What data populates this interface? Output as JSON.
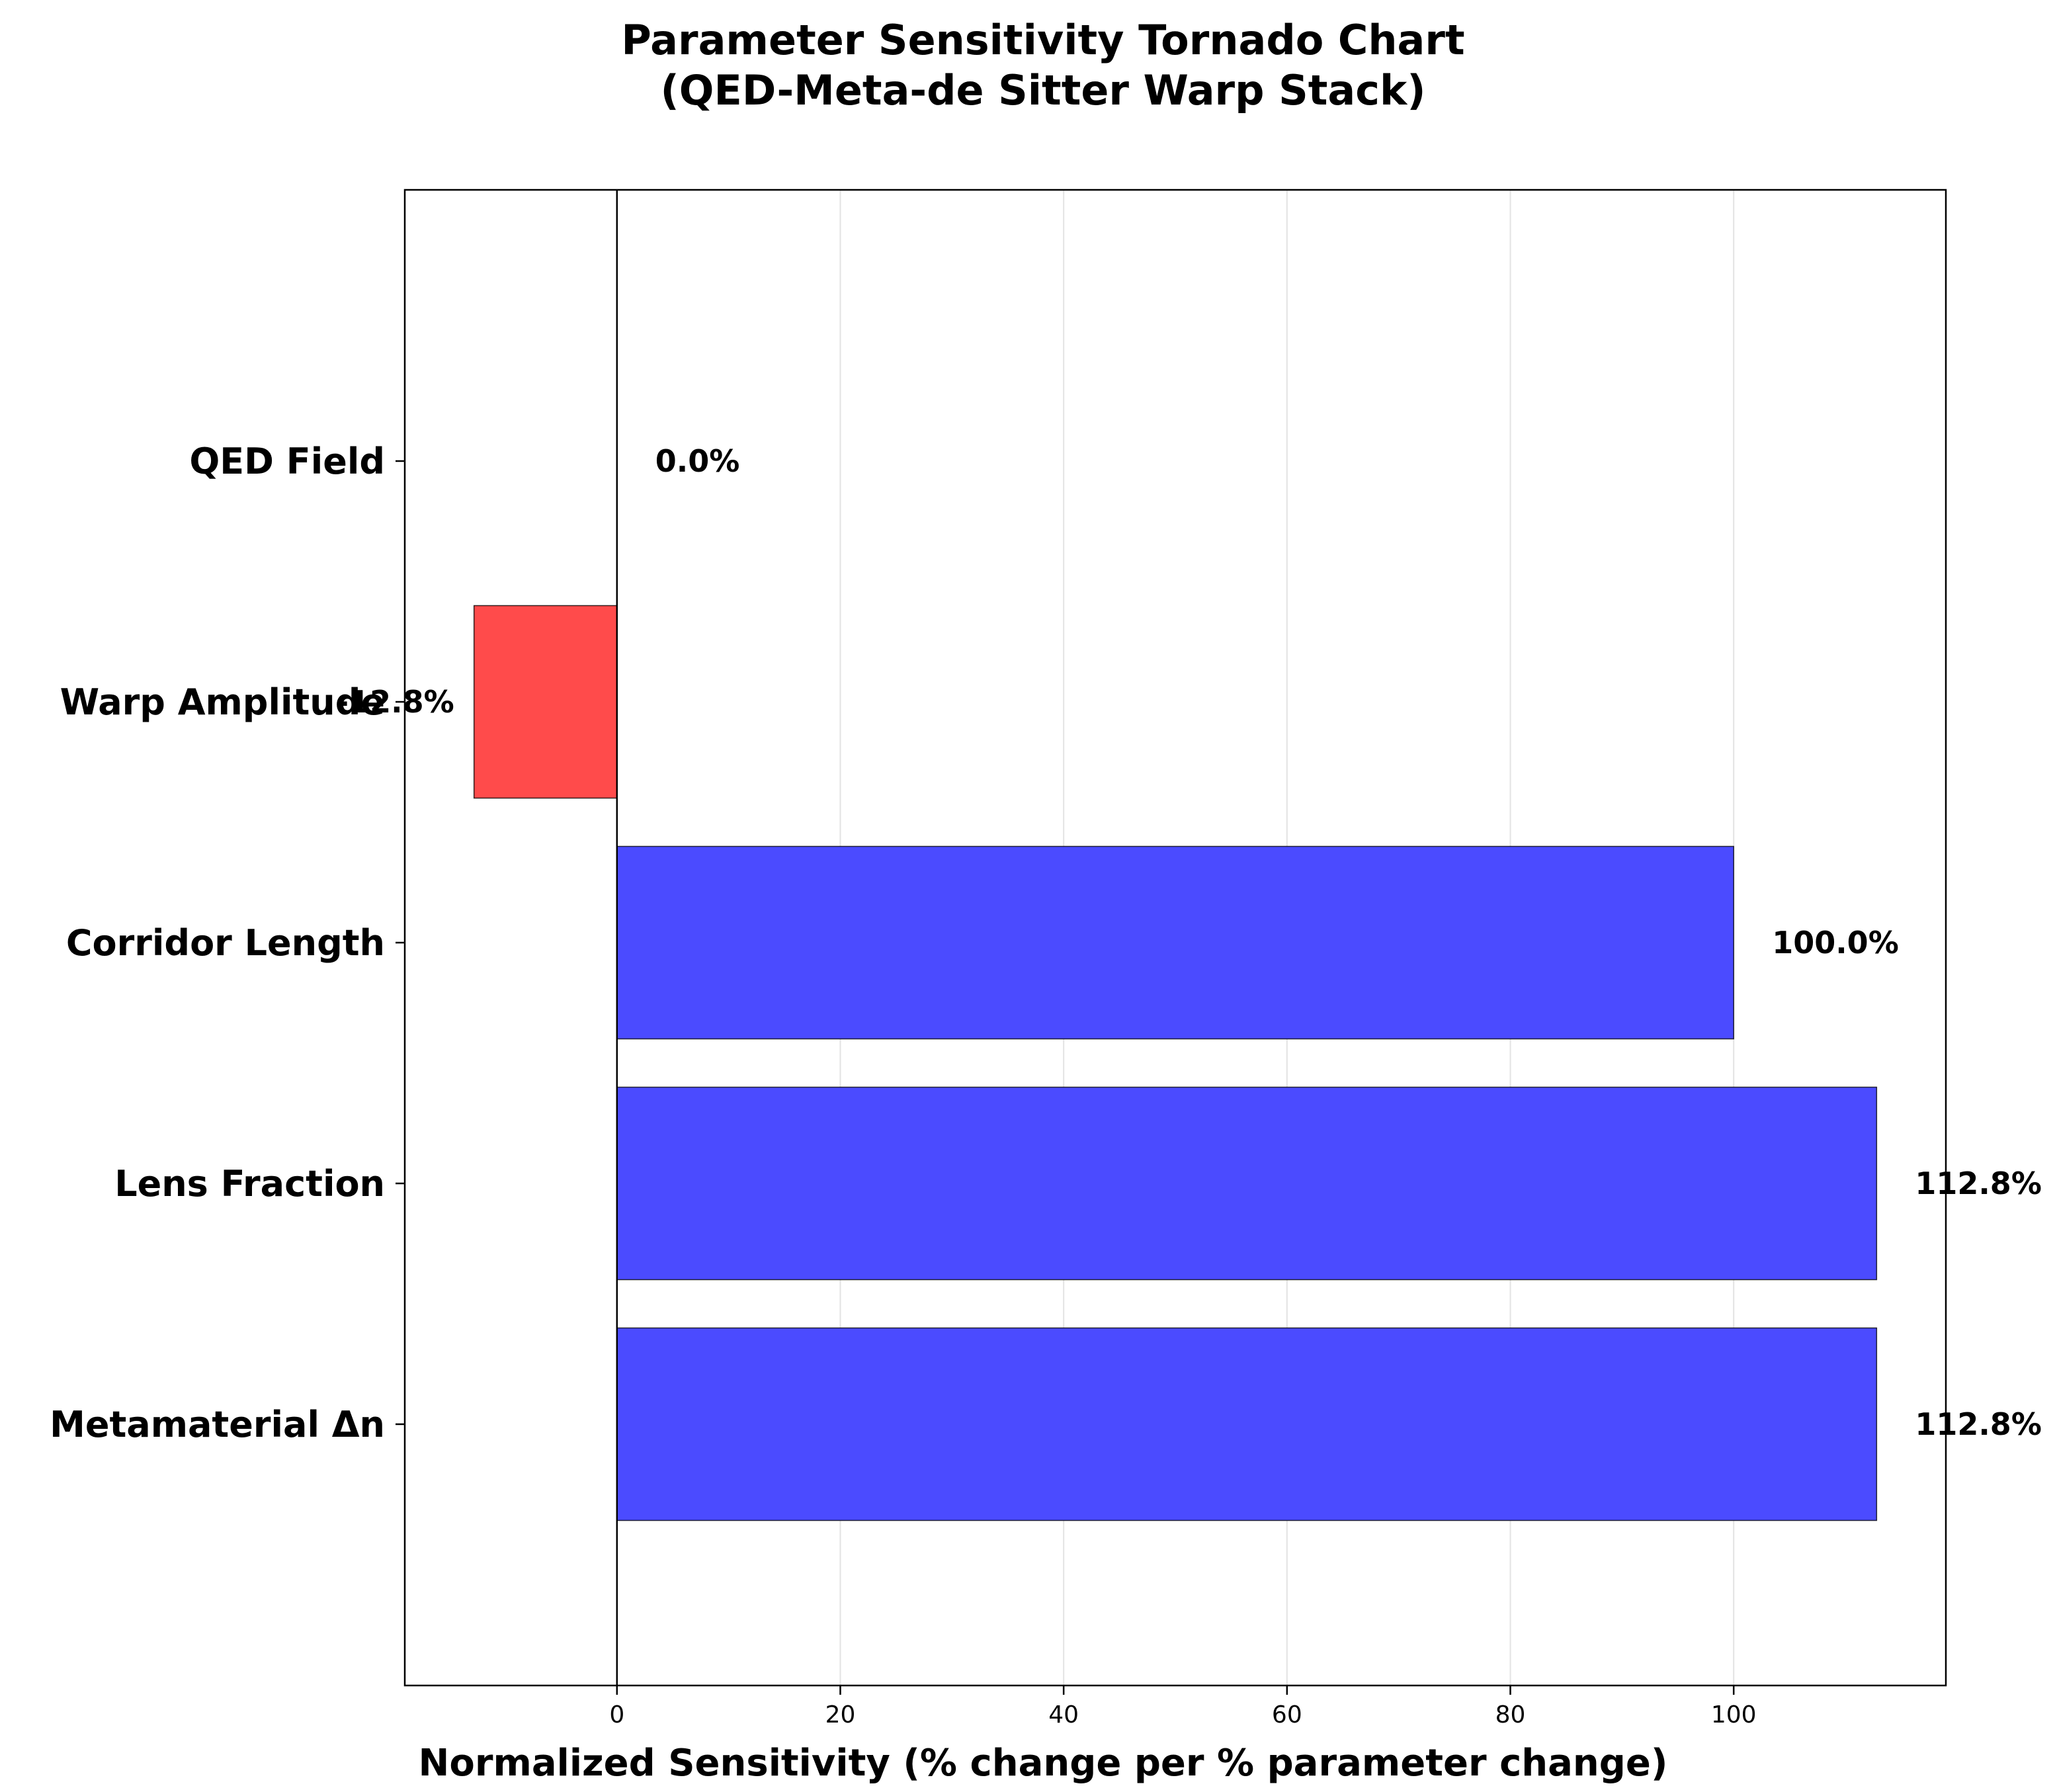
{
  "chart_data": {
    "type": "bar",
    "orientation": "horizontal",
    "title": "Parameter Sensitivity Tornado Chart",
    "subtitle": "(QED-Meta-de Sitter Warp Stack)",
    "xlabel": "Normalized Sensitivity (% change per % parameter change)",
    "ylabel": "",
    "categories": [
      "QED Field",
      "Warp Amplitude",
      "Corridor Length",
      "Lens Fraction",
      "Metamaterial Δn"
    ],
    "values": [
      0.0,
      -12.8,
      100.0,
      112.8,
      112.8
    ],
    "value_labels": [
      "0.0%",
      "-12.8%",
      "100.0%",
      "112.8%",
      "112.8%"
    ],
    "xlim": [
      -19.0,
      119.0
    ],
    "xticks": [
      0,
      20,
      40,
      60,
      80,
      100
    ],
    "xtick_labels": [
      "0",
      "20",
      "40",
      "60",
      "80",
      "100"
    ],
    "grid": "x",
    "colors": {
      "positive": "#4b4bff",
      "negative": "#ff4b4b",
      "bar_edge": "#000000",
      "grid": "#e3e3e3"
    }
  }
}
